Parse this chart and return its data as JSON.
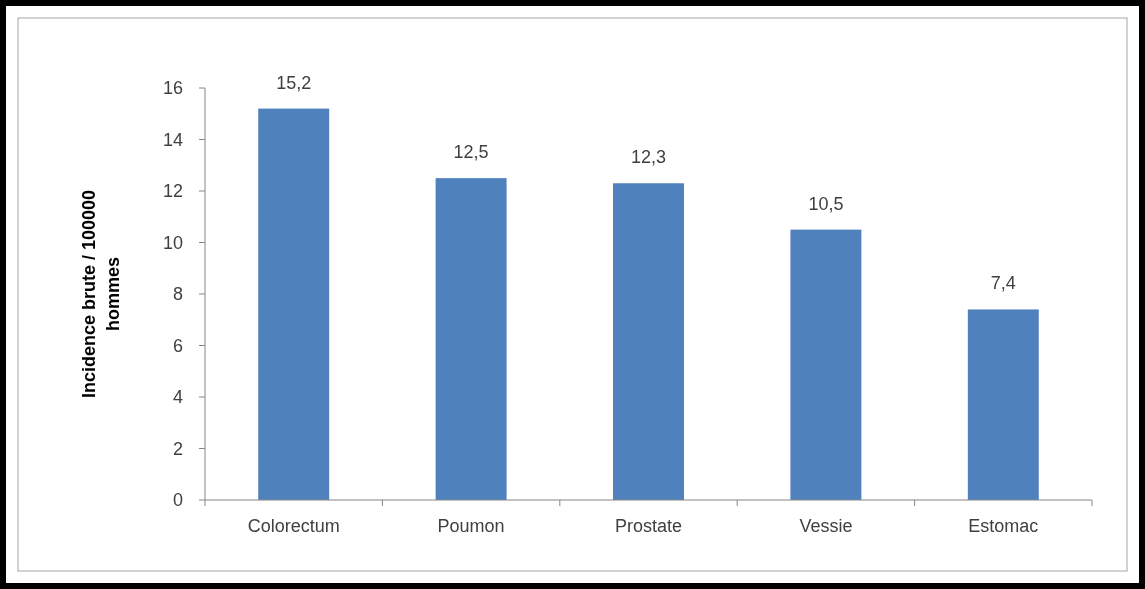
{
  "chart_data": {
    "type": "bar",
    "ylabel": "Incidence brute / 100000 hommes",
    "categories": [
      "Colorectum",
      "Poumon",
      "Prostate",
      "Vessie",
      "Estomac"
    ],
    "values": [
      15.2,
      12.5,
      12.3,
      10.5,
      7.4
    ],
    "value_labels": [
      "15,2",
      "12,5",
      "12,3",
      "10,5",
      "7,4"
    ],
    "color": "#4f81bd",
    "ylim": [
      0,
      16
    ],
    "yticks": [
      0,
      2,
      4,
      6,
      8,
      10,
      12,
      14,
      16
    ]
  }
}
